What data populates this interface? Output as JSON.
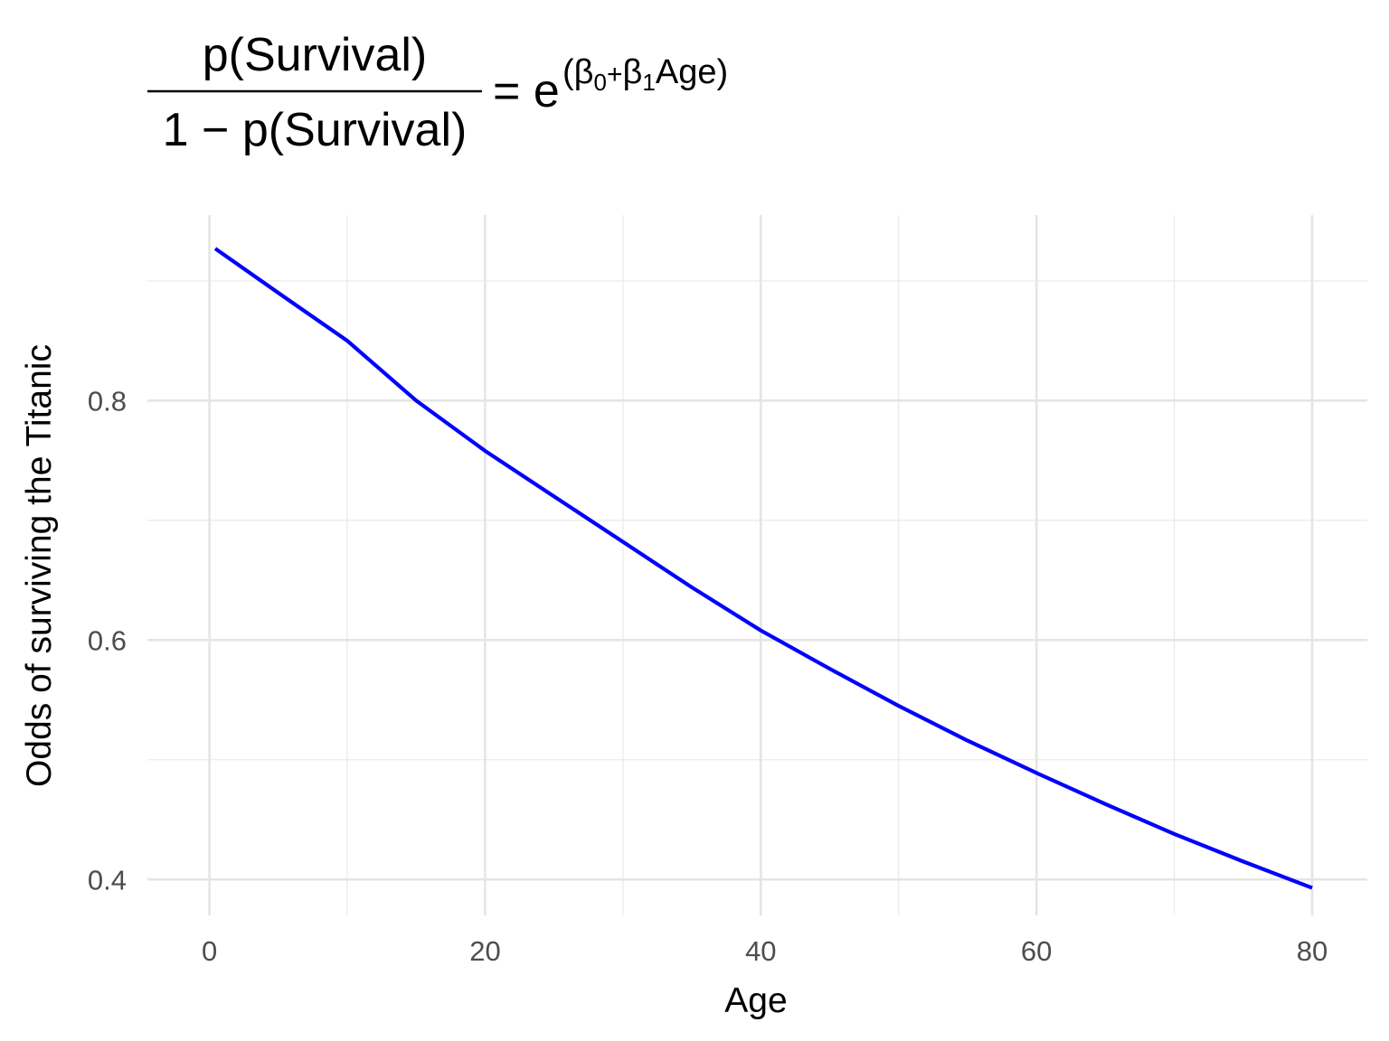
{
  "chart_data": {
    "type": "line",
    "title": {
      "numerator": "p(Survival)",
      "denominator_prefix": "1 − ",
      "denominator": "p(Survival)",
      "equals": "= e",
      "exponent_open": "(",
      "beta0": "β",
      "beta0_sub": "0",
      "plus": "+",
      "beta1": "β",
      "beta1_sub": "1",
      "exponent_var": "Age",
      "exponent_close": ")"
    },
    "xlabel": "Age",
    "ylabel": "Odds of surviving the Titanic",
    "xlim": [
      -4.5,
      84
    ],
    "ylim": [
      0.37,
      0.955
    ],
    "x_ticks": [
      0,
      20,
      40,
      60,
      80
    ],
    "y_ticks": [
      0.4,
      0.6,
      0.8
    ],
    "x_minor_gridlines": [
      10,
      30,
      50,
      70
    ],
    "y_minor_gridlines": [
      0.5,
      0.7,
      0.9
    ],
    "grid": true,
    "series": [
      {
        "color": "#0000ff",
        "x": [
          0.42,
          5,
          10,
          15,
          20,
          25,
          30,
          35,
          40,
          45,
          50,
          55,
          60,
          65,
          70,
          75,
          80
        ],
        "y": [
          0.927,
          0.89,
          0.85,
          0.8,
          0.758,
          0.72,
          0.682,
          0.644,
          0.608,
          0.576,
          0.545,
          0.516,
          0.489,
          0.463,
          0.438,
          0.415,
          0.393
        ]
      }
    ]
  }
}
